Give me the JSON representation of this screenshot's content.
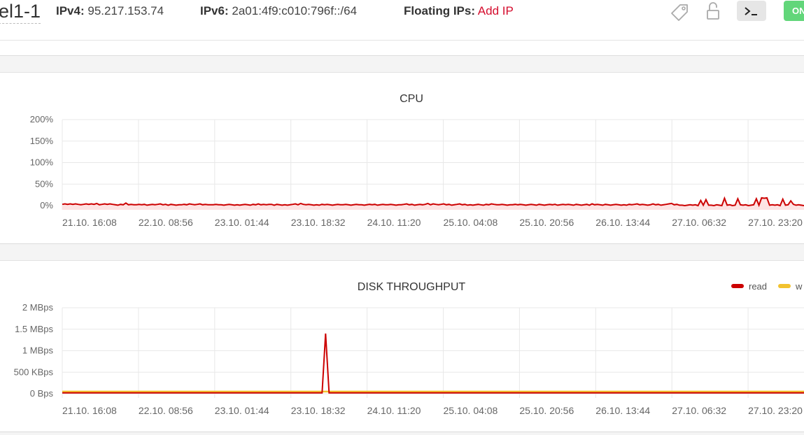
{
  "header": {
    "server_name": "el1-1",
    "ipv4_label": "IPv4:",
    "ipv4_value": "95.217.153.74",
    "ipv6_label": "IPv6:",
    "ipv6_value": "2a01:4f9:c010:796f::/64",
    "floating_label": "Floating IPs:",
    "floating_action": "Add IP",
    "power_label": "ON",
    "accent": "#d50c2d"
  },
  "icons": [
    "tag-icon",
    "lock-icon",
    "console-icon"
  ],
  "chart_data": [
    {
      "type": "area",
      "title": "CPU",
      "y_ticks": [
        "200%",
        "150%",
        "100%",
        "50%",
        "0%"
      ],
      "ylim": [
        0,
        200
      ],
      "x_ticks": [
        "21.10. 16:08",
        "22.10. 08:56",
        "23.10. 01:44",
        "23.10. 18:32",
        "24.10. 11:20",
        "25.10. 04:08",
        "25.10. 20:56",
        "26.10. 13:44",
        "27.10. 06:32",
        "27.10. 23:20"
      ],
      "grid": true,
      "series": [
        {
          "name": "",
          "color": "#cc0000",
          "values": [
            3,
            4,
            3,
            4,
            3,
            4,
            3,
            2,
            3,
            4,
            3,
            4,
            3,
            5,
            2,
            3,
            4,
            3,
            4,
            3,
            2,
            1,
            3,
            2,
            6,
            2,
            3,
            2,
            2,
            3,
            2,
            3,
            1,
            2,
            3,
            2,
            3,
            4,
            2,
            3,
            1,
            3,
            2,
            1,
            2,
            2,
            3,
            2,
            4,
            3,
            2,
            3,
            4,
            2,
            3,
            2,
            2,
            2,
            3,
            2,
            2,
            1,
            2,
            3,
            2,
            1,
            2,
            1,
            2,
            3,
            2,
            1,
            3,
            2,
            4,
            2,
            3,
            2,
            3,
            3,
            1,
            3,
            2,
            1,
            2,
            1,
            2,
            3,
            4,
            2,
            5,
            3,
            2,
            3,
            2,
            1,
            2,
            1,
            3,
            2,
            3,
            2,
            1,
            2,
            3,
            2,
            2,
            3,
            2,
            1,
            2,
            3,
            2,
            2,
            1,
            2,
            3,
            2,
            3,
            1,
            2,
            3,
            2,
            2,
            3,
            2,
            1,
            2,
            2,
            3,
            4,
            2,
            3,
            1,
            2,
            3,
            2,
            3,
            5,
            2,
            4,
            3,
            2,
            3,
            4,
            2,
            3,
            1,
            2,
            3,
            4,
            2,
            3,
            1,
            2,
            1,
            2,
            3,
            2,
            1,
            3,
            2,
            4,
            3,
            2,
            2,
            3,
            2,
            1,
            2,
            2,
            3,
            2,
            3,
            2,
            1,
            2,
            3,
            2,
            1,
            3,
            2,
            1,
            2,
            3,
            2,
            3,
            1,
            2,
            3,
            2,
            3,
            2,
            1,
            3,
            2,
            1,
            2,
            3,
            1,
            4,
            2,
            3,
            2,
            1,
            3,
            2,
            1,
            2,
            3,
            2,
            1,
            2,
            1,
            3,
            2,
            3,
            4,
            2,
            3,
            2,
            1,
            2,
            4,
            2,
            3,
            1,
            2,
            3,
            4,
            5,
            2,
            3,
            1,
            1,
            0,
            1,
            2,
            1,
            2,
            0,
            12,
            1,
            14,
            1,
            1,
            0,
            2,
            1,
            0,
            17,
            1,
            2,
            0,
            1,
            16,
            2,
            1,
            2,
            0,
            1,
            2,
            16,
            1,
            18,
            17,
            18,
            1,
            2,
            1,
            2,
            0,
            15,
            1,
            2,
            11,
            3,
            1,
            2,
            1,
            0
          ],
          "fill": "#fde3e3"
        }
      ]
    },
    {
      "type": "line",
      "title": "DISK THROUGHPUT",
      "y_ticks": [
        "2 MBps",
        "1.5 MBps",
        "1 MBps",
        "500 KBps",
        "0 Bps"
      ],
      "ylim": [
        0,
        2
      ],
      "y_unit": "MBps",
      "x_ticks": [
        "21.10. 16:08",
        "22.10. 08:56",
        "23.10. 01:44",
        "23.10. 18:32",
        "24.10. 11:20",
        "25.10. 04:08",
        "25.10. 20:56",
        "26.10. 13:44",
        "27.10. 06:32",
        "27.10. 23:20"
      ],
      "grid": true,
      "legend_position": "top-right",
      "series": [
        {
          "name": "read",
          "color": "#cc0000",
          "spike_at": 0.355,
          "spike_value": 1.4,
          "baseline": 0.02
        },
        {
          "name": "w",
          "color": "#f2c22f",
          "baseline": 0.05
        }
      ]
    }
  ]
}
